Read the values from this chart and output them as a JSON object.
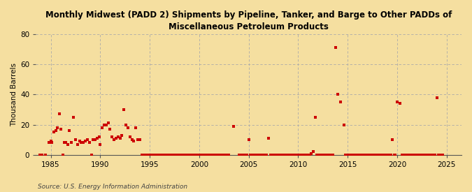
{
  "title": "Monthly Midwest (PADD 2) Shipments by Pipeline, Tanker, and Barge to Other PADDs of\nMiscellaneous Petroleum Products",
  "ylabel": "Thousand Barrels",
  "source": "Source: U.S. Energy Information Administration",
  "background_color": "#f5dfa0",
  "plot_bg_color": "#f5dfa0",
  "marker_color": "#cc0000",
  "ylim": [
    0,
    80
  ],
  "yticks": [
    0,
    20,
    40,
    60,
    80
  ],
  "xlim_min": 1983.5,
  "xlim_max": 2026.5,
  "xticks": [
    1985,
    1990,
    1995,
    2000,
    2005,
    2010,
    2015,
    2020,
    2025
  ],
  "data_points": [
    [
      1983.9,
      0
    ],
    [
      1984.1,
      0
    ],
    [
      1984.5,
      0
    ],
    [
      1984.8,
      8
    ],
    [
      1985.0,
      9
    ],
    [
      1985.1,
      8
    ],
    [
      1985.3,
      15
    ],
    [
      1985.5,
      16
    ],
    [
      1985.7,
      18
    ],
    [
      1985.9,
      27
    ],
    [
      1986.0,
      17
    ],
    [
      1986.2,
      0
    ],
    [
      1986.4,
      8
    ],
    [
      1986.5,
      8
    ],
    [
      1986.7,
      7
    ],
    [
      1986.9,
      16
    ],
    [
      1987.1,
      8
    ],
    [
      1987.3,
      25
    ],
    [
      1987.5,
      10
    ],
    [
      1987.7,
      7
    ],
    [
      1987.9,
      9
    ],
    [
      1988.1,
      8
    ],
    [
      1988.3,
      8
    ],
    [
      1988.5,
      9
    ],
    [
      1988.7,
      10
    ],
    [
      1988.9,
      8
    ],
    [
      1989.1,
      0
    ],
    [
      1989.3,
      10
    ],
    [
      1989.5,
      10
    ],
    [
      1989.7,
      11
    ],
    [
      1989.9,
      12
    ],
    [
      1990.0,
      7
    ],
    [
      1990.2,
      18
    ],
    [
      1990.4,
      20
    ],
    [
      1990.6,
      20
    ],
    [
      1990.8,
      21
    ],
    [
      1991.0,
      17
    ],
    [
      1991.2,
      12
    ],
    [
      1991.4,
      10
    ],
    [
      1991.6,
      11
    ],
    [
      1991.8,
      12
    ],
    [
      1992.0,
      11
    ],
    [
      1992.2,
      13
    ],
    [
      1992.4,
      30
    ],
    [
      1992.6,
      20
    ],
    [
      1992.8,
      18
    ],
    [
      1993.0,
      12
    ],
    [
      1993.2,
      10
    ],
    [
      1993.4,
      9
    ],
    [
      1993.6,
      18
    ],
    [
      1993.8,
      10
    ],
    [
      1994.0,
      10
    ],
    [
      1994.2,
      0
    ],
    [
      1994.4,
      0
    ],
    [
      1994.6,
      0
    ],
    [
      1994.8,
      0
    ],
    [
      1995.0,
      0
    ],
    [
      1995.2,
      0
    ],
    [
      1995.4,
      0
    ],
    [
      1995.6,
      0
    ],
    [
      1995.8,
      0
    ],
    [
      1996.0,
      0
    ],
    [
      1996.2,
      0
    ],
    [
      1996.4,
      0
    ],
    [
      1996.6,
      0
    ],
    [
      1996.8,
      0
    ],
    [
      1997.0,
      0
    ],
    [
      1997.2,
      0
    ],
    [
      1997.4,
      0
    ],
    [
      1997.6,
      0
    ],
    [
      1997.8,
      0
    ],
    [
      1998.0,
      0
    ],
    [
      1998.2,
      0
    ],
    [
      1998.4,
      0
    ],
    [
      1998.6,
      0
    ],
    [
      1998.8,
      0
    ],
    [
      1999.0,
      0
    ],
    [
      1999.2,
      0
    ],
    [
      1999.4,
      0
    ],
    [
      1999.6,
      0
    ],
    [
      1999.8,
      0
    ],
    [
      2000.0,
      0
    ],
    [
      2000.2,
      0
    ],
    [
      2000.4,
      0
    ],
    [
      2000.6,
      0
    ],
    [
      2000.8,
      0
    ],
    [
      2001.0,
      0
    ],
    [
      2001.2,
      0
    ],
    [
      2001.4,
      0
    ],
    [
      2001.6,
      0
    ],
    [
      2001.8,
      0
    ],
    [
      2002.0,
      0
    ],
    [
      2002.2,
      0
    ],
    [
      2002.4,
      0
    ],
    [
      2002.6,
      0
    ],
    [
      2002.8,
      0
    ],
    [
      2003.0,
      0
    ],
    [
      2003.5,
      19
    ],
    [
      2004.0,
      0
    ],
    [
      2004.2,
      0
    ],
    [
      2004.4,
      0
    ],
    [
      2004.6,
      0
    ],
    [
      2004.8,
      0
    ],
    [
      2005.0,
      10
    ],
    [
      2005.2,
      0
    ],
    [
      2005.4,
      0
    ],
    [
      2005.6,
      0
    ],
    [
      2005.8,
      0
    ],
    [
      2006.0,
      0
    ],
    [
      2006.2,
      0
    ],
    [
      2006.4,
      0
    ],
    [
      2006.6,
      0
    ],
    [
      2006.8,
      0
    ],
    [
      2007.0,
      11
    ],
    [
      2007.2,
      0
    ],
    [
      2007.4,
      0
    ],
    [
      2007.6,
      0
    ],
    [
      2007.8,
      0
    ],
    [
      2008.0,
      0
    ],
    [
      2008.2,
      0
    ],
    [
      2008.4,
      0
    ],
    [
      2008.6,
      0
    ],
    [
      2008.8,
      0
    ],
    [
      2009.0,
      0
    ],
    [
      2009.2,
      0
    ],
    [
      2009.4,
      0
    ],
    [
      2009.6,
      0
    ],
    [
      2009.8,
      0
    ],
    [
      2010.0,
      0
    ],
    [
      2010.2,
      0
    ],
    [
      2010.4,
      0
    ],
    [
      2010.6,
      0
    ],
    [
      2010.8,
      0
    ],
    [
      2011.0,
      0
    ],
    [
      2011.2,
      0
    ],
    [
      2011.3,
      1
    ],
    [
      2011.5,
      2
    ],
    [
      2011.7,
      25
    ],
    [
      2011.9,
      0
    ],
    [
      2012.0,
      0
    ],
    [
      2012.1,
      0
    ],
    [
      2012.3,
      0
    ],
    [
      2012.5,
      0
    ],
    [
      2012.6,
      0
    ],
    [
      2012.8,
      0
    ],
    [
      2012.9,
      0
    ],
    [
      2013.1,
      0
    ],
    [
      2013.2,
      0
    ],
    [
      2013.4,
      0
    ],
    [
      2013.5,
      0
    ],
    [
      2013.8,
      71
    ],
    [
      2014.0,
      40
    ],
    [
      2014.3,
      35
    ],
    [
      2014.6,
      20
    ],
    [
      2014.8,
      0
    ],
    [
      2014.9,
      0
    ],
    [
      2015.0,
      0
    ],
    [
      2015.2,
      0
    ],
    [
      2015.4,
      0
    ],
    [
      2015.6,
      0
    ],
    [
      2015.8,
      0
    ],
    [
      2016.0,
      0
    ],
    [
      2016.2,
      0
    ],
    [
      2016.4,
      0
    ],
    [
      2016.6,
      0
    ],
    [
      2016.8,
      0
    ],
    [
      2017.0,
      0
    ],
    [
      2017.2,
      0
    ],
    [
      2017.4,
      0
    ],
    [
      2017.6,
      0
    ],
    [
      2017.8,
      0
    ],
    [
      2018.0,
      0
    ],
    [
      2018.2,
      0
    ],
    [
      2018.4,
      0
    ],
    [
      2018.6,
      0
    ],
    [
      2018.8,
      0
    ],
    [
      2019.0,
      0
    ],
    [
      2019.2,
      0
    ],
    [
      2019.4,
      0
    ],
    [
      2019.5,
      10
    ],
    [
      2019.7,
      0
    ],
    [
      2019.8,
      0
    ],
    [
      2020.0,
      35
    ],
    [
      2020.3,
      34
    ],
    [
      2020.5,
      0
    ],
    [
      2020.6,
      0
    ],
    [
      2020.8,
      0
    ],
    [
      2021.0,
      0
    ],
    [
      2021.2,
      0
    ],
    [
      2021.4,
      0
    ],
    [
      2021.6,
      0
    ],
    [
      2021.8,
      0
    ],
    [
      2022.0,
      0
    ],
    [
      2022.2,
      0
    ],
    [
      2022.4,
      0
    ],
    [
      2022.6,
      0
    ],
    [
      2022.8,
      0
    ],
    [
      2023.0,
      0
    ],
    [
      2023.2,
      0
    ],
    [
      2023.4,
      0
    ],
    [
      2023.6,
      0
    ],
    [
      2023.8,
      0
    ],
    [
      2024.0,
      38
    ],
    [
      2024.2,
      0
    ],
    [
      2024.4,
      0
    ],
    [
      2024.6,
      0
    ]
  ]
}
